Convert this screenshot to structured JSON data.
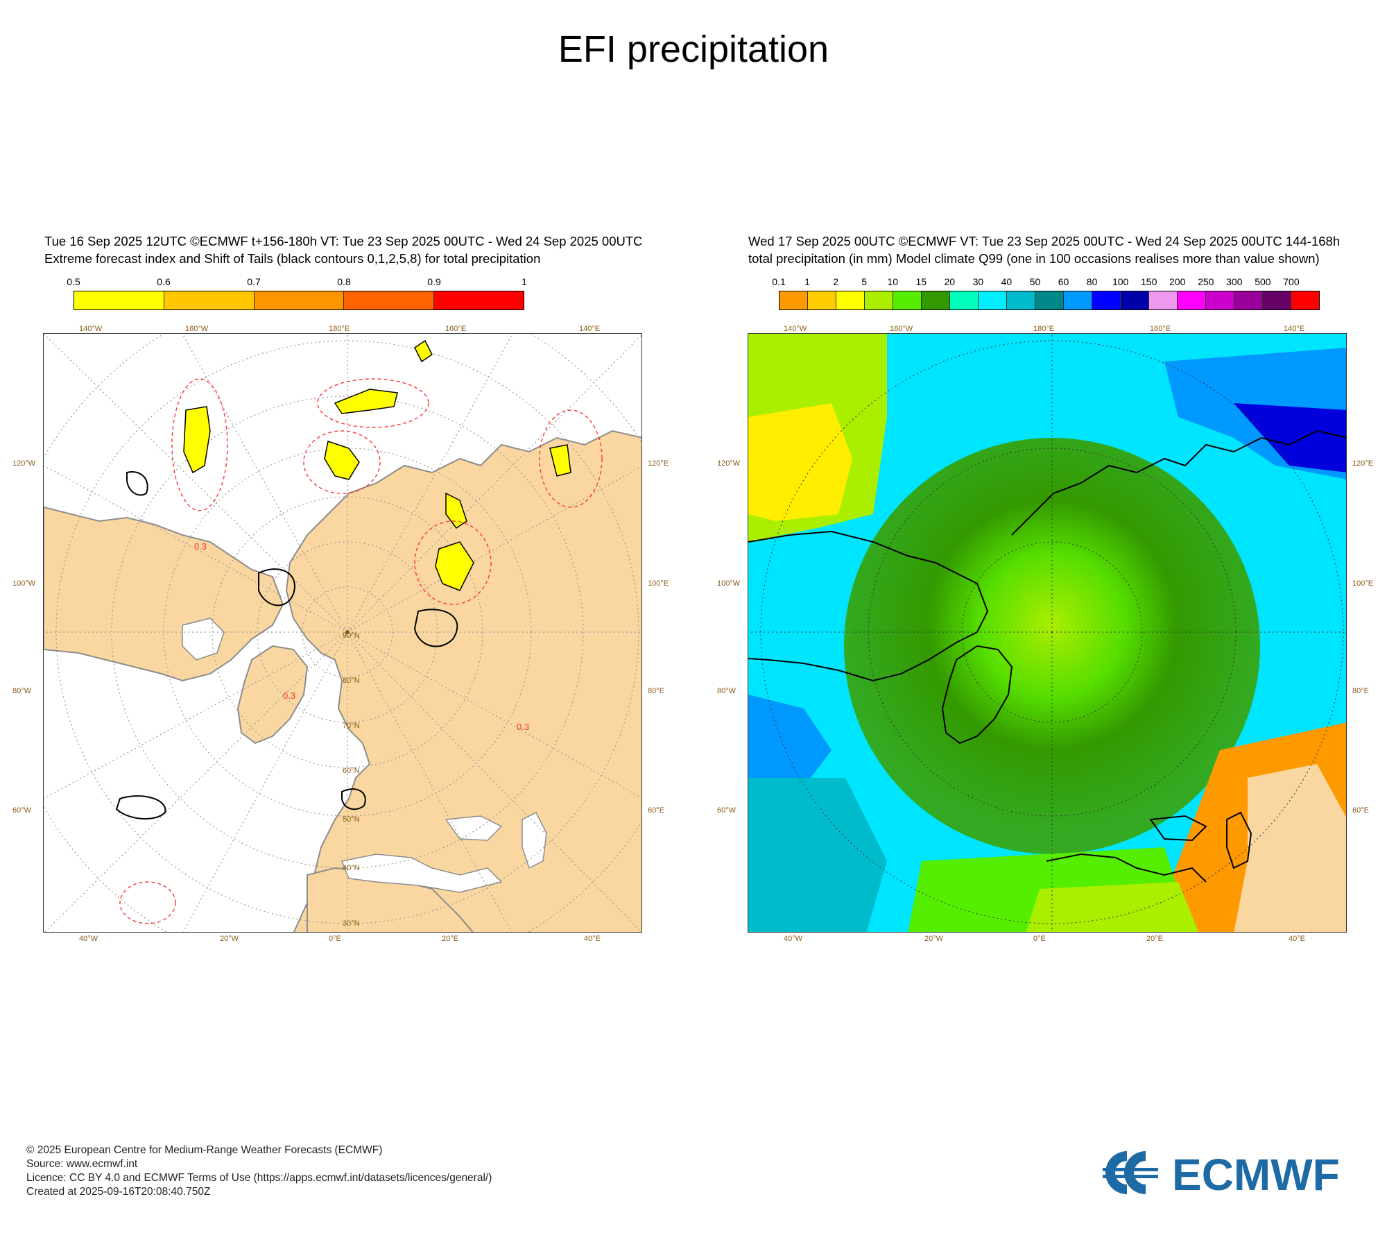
{
  "title": "EFI precipitation",
  "left_panel": {
    "header_line1": "Tue 16 Sep 2025 12UTC ©ECMWF t+156-180h  VT: Tue 23 Sep 2025 00UTC - Wed 24 Sep 2025 00UTC",
    "header_line2": "Extreme forecast index and Shift of Tails (black contours 0,1,2,5,8) for total precipitation",
    "colorbar": {
      "labels": [
        "0.5",
        "0.6",
        "0.7",
        "0.8",
        "0.9",
        "1"
      ],
      "colors": [
        "#ffff00",
        "#ffc800",
        "#ff9600",
        "#ff6400",
        "#ff0000"
      ]
    },
    "contour_label": "0.3"
  },
  "right_panel": {
    "header_line1": "Wed 17 Sep 2025 00UTC ©ECMWF VT: Tue 23 Sep 2025 00UTC - Wed 24 Sep 2025 00UTC   144-168h",
    "header_line2": "total precipitation (in mm)  Model climate Q99 (one in 100 occasions realises more than value shown)",
    "colorbar": {
      "labels": [
        "0.1",
        "1",
        "2",
        "5",
        "10",
        "15",
        "20",
        "30",
        "40",
        "50",
        "60",
        "80",
        "100",
        "150",
        "200",
        "250",
        "300",
        "500",
        "700"
      ],
      "colors": [
        "#ff9900",
        "#ffcc00",
        "#ffff00",
        "#aaee00",
        "#55ee00",
        "#339900",
        "#00ffbb",
        "#00eeff",
        "#00bbcc",
        "#008888",
        "#0099ff",
        "#0000ff",
        "#0000aa",
        "#ee99ee",
        "#ff00ff",
        "#cc00cc",
        "#990099",
        "#660066",
        "#ff0000"
      ]
    }
  },
  "map_labels": {
    "lon_top": [
      "140°W",
      "160°W",
      "180°E",
      "160°E",
      "140°E"
    ],
    "lon_bottom": [
      "40°W",
      "20°W",
      "0°E",
      "20°E",
      "40°E"
    ],
    "lat_left": [
      "120°W",
      "100°W",
      "80°W",
      "60°W"
    ],
    "lat_right": [
      "120°E",
      "100°E",
      "80°E",
      "60°E"
    ],
    "parallels": [
      "30°N",
      "40°N",
      "50°N",
      "60°N",
      "70°N",
      "80°N",
      "90°N"
    ]
  },
  "colors": {
    "land_left": "#fad7a0",
    "coast_grey": "#8c8c8c",
    "graticule": "#999999",
    "axis_label": "#8a5a14",
    "logo_blue": "#1d6aa5"
  },
  "footer": {
    "line1": "© 2025 European Centre for Medium-Range Weather Forecasts (ECMWF)",
    "line2": "Source: www.ecmwf.int",
    "line3": "Licence: CC BY 4.0 and ECMWF Terms of Use (https://apps.ecmwf.int/datasets/licences/general/)",
    "line4": "Created at 2025-09-16T20:08:40.750Z"
  },
  "logo": {
    "text": "ECMWF"
  }
}
